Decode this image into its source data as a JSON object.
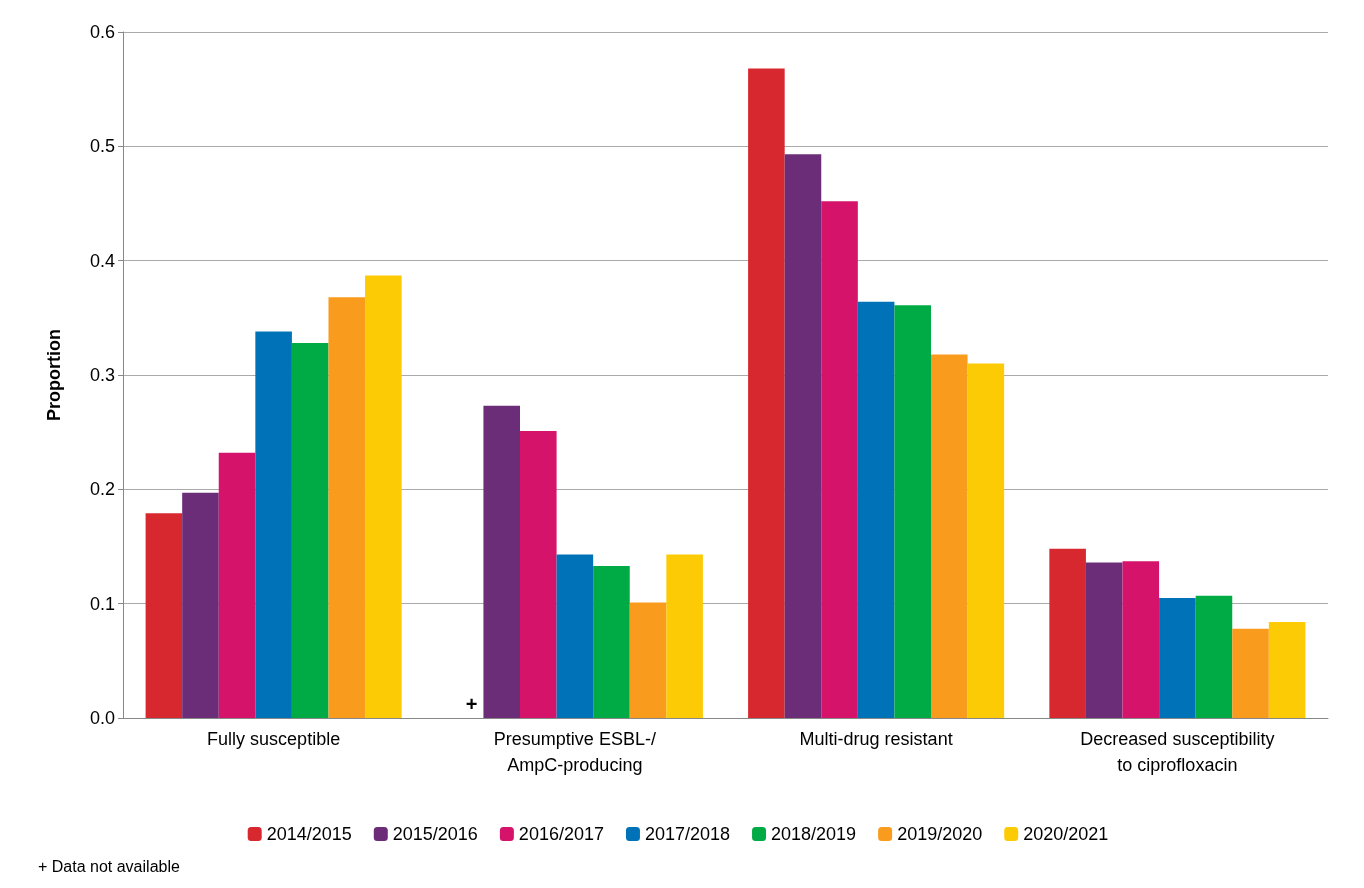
{
  "chart_data": {
    "type": "bar",
    "ylabel": "Proportion",
    "categories": [
      "Fully susceptible",
      "Presumptive ESBL-/\nAmpC-producing",
      "Multi-drug resistant",
      "Decreased susceptibility\nto ciprofloxacin"
    ],
    "series": [
      {
        "name": "2014/2015",
        "color": "#d7282f",
        "values": [
          0.179,
          null,
          0.568,
          0.148
        ],
        "value_labels": [
          null,
          "+",
          null,
          null
        ]
      },
      {
        "name": "2015/2016",
        "color": "#6c2d78",
        "values": [
          0.197,
          0.273,
          0.493,
          0.136
        ]
      },
      {
        "name": "2016/2017",
        "color": "#d5136b",
        "values": [
          0.232,
          0.251,
          0.452,
          0.137
        ]
      },
      {
        "name": "2017/2018",
        "color": "#0073b8",
        "values": [
          0.338,
          0.143,
          0.364,
          0.105
        ]
      },
      {
        "name": "2018/2019",
        "color": "#00aa44",
        "values": [
          0.328,
          0.133,
          0.361,
          0.107
        ]
      },
      {
        "name": "2019/2020",
        "color": "#f99b1c",
        "values": [
          0.368,
          0.101,
          0.318,
          0.078
        ]
      },
      {
        "name": "2020/2021",
        "color": "#fccb05",
        "values": [
          0.387,
          0.143,
          0.31,
          0.084
        ]
      }
    ],
    "ylim": [
      0,
      0.6
    ],
    "yticks": [
      {
        "value": 0,
        "label": "0.0"
      },
      0.1,
      0.2,
      0.3,
      0.4,
      0.5,
      0.6
    ],
    "grid": "y",
    "legend": "bottom",
    "annotations": [
      "+ Data not available"
    ]
  }
}
